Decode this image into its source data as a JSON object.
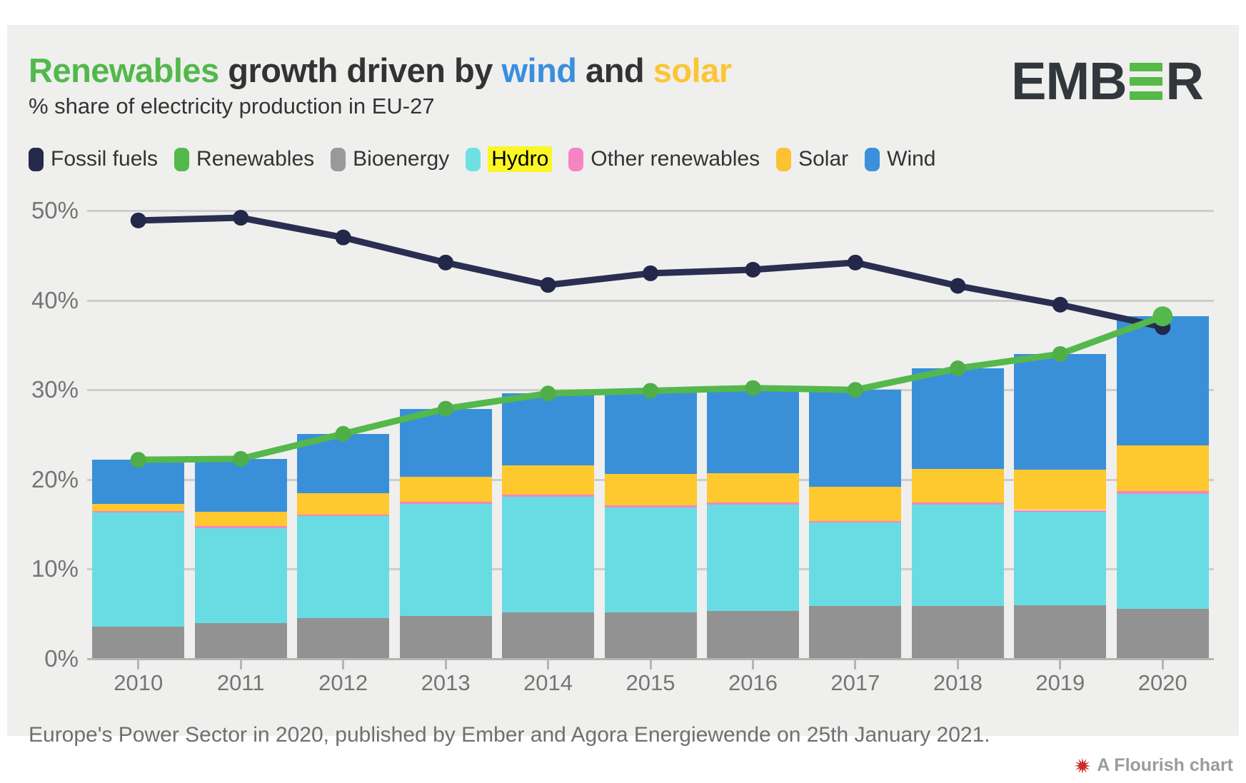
{
  "header": {
    "title_parts": [
      {
        "text": "Renewables",
        "color": "#52b84a"
      },
      {
        "text": " growth driven by ",
        "color": "#333333"
      },
      {
        "text": "wind",
        "color": "#3b8ede"
      },
      {
        "text": " and ",
        "color": "#333333"
      },
      {
        "text": "solar",
        "color": "#fbc535"
      }
    ],
    "subtitle": "% share of electricity production in EU-27",
    "logo": {
      "prefix": "EMB",
      "suffix": "R",
      "bar_color": "#57b947",
      "text_color": "#32373c"
    }
  },
  "legend": {
    "items": [
      {
        "label": "Fossil fuels",
        "color": "#262a4a",
        "highlighted": false
      },
      {
        "label": "Renewables",
        "color": "#53b94c",
        "highlighted": false
      },
      {
        "label": "Bioenergy",
        "color": "#999999",
        "highlighted": false
      },
      {
        "label": "Hydro",
        "color": "#6ee0e4",
        "highlighted": true
      },
      {
        "label": "Other renewables",
        "color": "#f584c4",
        "highlighted": false
      },
      {
        "label": "Solar",
        "color": "#fdc231",
        "highlighted": false
      },
      {
        "label": "Wind",
        "color": "#3b90d9",
        "highlighted": false
      }
    ],
    "highlight_color": "#fbf725"
  },
  "chart_data": {
    "type": "bar",
    "subtype": "stacked-columns-with-lines",
    "categories": [
      "2010",
      "2011",
      "2012",
      "2013",
      "2014",
      "2015",
      "2016",
      "2017",
      "2018",
      "2019",
      "2020"
    ],
    "stacked_bar_series": [
      {
        "name": "Bioenergy",
        "color": "#929292",
        "values": [
          3.6,
          4.0,
          4.5,
          4.8,
          5.2,
          5.2,
          5.3,
          5.9,
          5.9,
          6.0,
          5.6
        ]
      },
      {
        "name": "Hydro",
        "color": "#68dce2",
        "values": [
          12.7,
          10.6,
          11.4,
          12.5,
          12.9,
          11.7,
          11.9,
          9.3,
          11.3,
          10.4,
          12.8
        ]
      },
      {
        "name": "Other renewables",
        "color": "#f584c4",
        "values": [
          0.2,
          0.2,
          0.2,
          0.2,
          0.2,
          0.2,
          0.2,
          0.2,
          0.2,
          0.2,
          0.3
        ]
      },
      {
        "name": "Solar",
        "color": "#fec82f",
        "values": [
          0.8,
          1.6,
          2.4,
          2.8,
          3.3,
          3.5,
          3.3,
          3.8,
          3.8,
          4.5,
          5.1
        ]
      },
      {
        "name": "Wind",
        "color": "#3990d8",
        "values": [
          4.9,
          5.9,
          6.6,
          7.6,
          8.0,
          9.3,
          9.5,
          10.8,
          11.2,
          12.9,
          14.4
        ]
      }
    ],
    "line_series": [
      {
        "name": "Fossil fuels",
        "color": "#2a2e50",
        "dot_color": "#232749",
        "values": [
          48.9,
          49.2,
          47.0,
          44.2,
          41.7,
          43.0,
          43.4,
          44.2,
          41.6,
          39.5,
          37.0
        ]
      },
      {
        "name": "Renewables",
        "color": "#54b84c",
        "dot_color": "#4fae47",
        "values": [
          22.2,
          22.3,
          25.1,
          27.9,
          29.6,
          29.9,
          30.2,
          30.0,
          32.4,
          34.0,
          38.2
        ]
      }
    ],
    "ylim": [
      0,
      50
    ],
    "yticks": [
      0,
      10,
      20,
      30,
      40,
      50
    ],
    "ytick_labels": [
      "0%",
      "10%",
      "20%",
      "30%",
      "40%",
      "50%"
    ],
    "grid": "horizontal",
    "legend_position": "top"
  },
  "footer": {
    "text": "Europe's Power Sector in 2020, published by Ember and Agora Energiewende on 25th January 2021."
  },
  "attribution": {
    "label": "A Flourish chart",
    "star_color": "#cf2b2b"
  }
}
